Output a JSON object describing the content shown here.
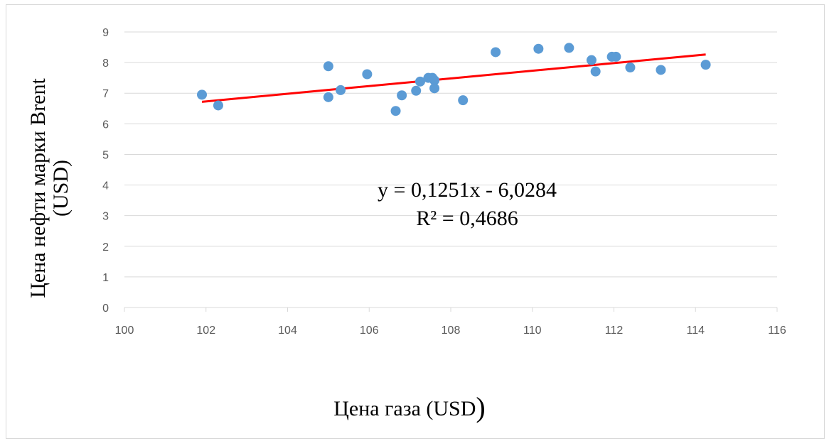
{
  "chart_data": {
    "type": "scatter",
    "xlabel": "Цена газа (USD)",
    "ylabel_lines": [
      "Цена нефти марки Brent",
      "(USD)"
    ],
    "xlim": [
      100,
      116
    ],
    "ylim": [
      0,
      9
    ],
    "xticks": [
      100,
      102,
      104,
      106,
      108,
      110,
      112,
      114,
      116
    ],
    "yticks": [
      0,
      1,
      2,
      3,
      4,
      5,
      6,
      7,
      8,
      9
    ],
    "grid": "horizontal",
    "point_color": "#5B9BD5",
    "trendline_color": "#FF0000",
    "points": [
      {
        "x": 101.9,
        "y": 6.95
      },
      {
        "x": 102.3,
        "y": 6.6
      },
      {
        "x": 105.0,
        "y": 7.88
      },
      {
        "x": 105.0,
        "y": 6.87
      },
      {
        "x": 105.3,
        "y": 7.1
      },
      {
        "x": 105.95,
        "y": 7.62
      },
      {
        "x": 106.65,
        "y": 6.42
      },
      {
        "x": 106.8,
        "y": 6.93
      },
      {
        "x": 107.15,
        "y": 7.08
      },
      {
        "x": 107.25,
        "y": 7.38
      },
      {
        "x": 107.45,
        "y": 7.5
      },
      {
        "x": 107.55,
        "y": 7.5
      },
      {
        "x": 107.6,
        "y": 7.42
      },
      {
        "x": 107.6,
        "y": 7.16
      },
      {
        "x": 108.3,
        "y": 6.77
      },
      {
        "x": 109.1,
        "y": 8.34
      },
      {
        "x": 110.15,
        "y": 8.45
      },
      {
        "x": 110.9,
        "y": 8.48
      },
      {
        "x": 111.45,
        "y": 8.08
      },
      {
        "x": 111.55,
        "y": 7.71
      },
      {
        "x": 111.95,
        "y": 8.19
      },
      {
        "x": 112.05,
        "y": 8.19
      },
      {
        "x": 112.4,
        "y": 7.84
      },
      {
        "x": 113.15,
        "y": 7.76
      },
      {
        "x": 114.25,
        "y": 7.93
      }
    ],
    "trendline": {
      "x_range": [
        101.9,
        114.25
      ],
      "equation": "y = 0,1251x - 6,0284",
      "r_squared": "R² = 0,4686"
    }
  }
}
